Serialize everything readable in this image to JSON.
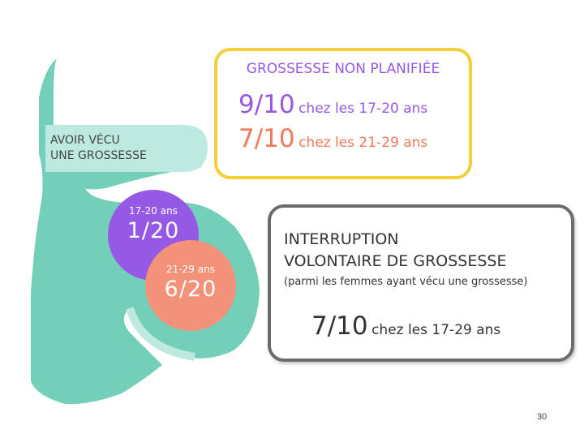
{
  "colors": {
    "teal": "#73cfb8",
    "light_teal": "#bde9e0",
    "purple": "#9659e6",
    "orange": "#f4917a",
    "yellow_border": "#f3cf3a",
    "gray_border": "#6b6b6b"
  },
  "silhouette": {
    "label_line1": "AVOIR VÉCU",
    "label_line2": "UNE GROSSESSE",
    "circle_17_20": {
      "age": "17-20 ans",
      "ratio": "1/20"
    },
    "circle_21_29": {
      "age": "21-29 ans",
      "ratio": "6/20"
    }
  },
  "unplanned": {
    "title": "GROSSESSE NON PLANIFIÉE",
    "line1_big": "9/10",
    "line1_small": "chez les 17-20 ans",
    "line2_big": "7/10",
    "line2_small": "chez les 21-29 ans"
  },
  "abortion": {
    "title_line1": "INTERRUPTION",
    "title_line2": "VOLONTAIRE DE GROSSESSE",
    "subtitle": "(parmi les femmes ayant vécu une grossesse)",
    "stat_big": "7/10",
    "stat_small": "chez les 17-29 ans"
  },
  "page_number": "30"
}
